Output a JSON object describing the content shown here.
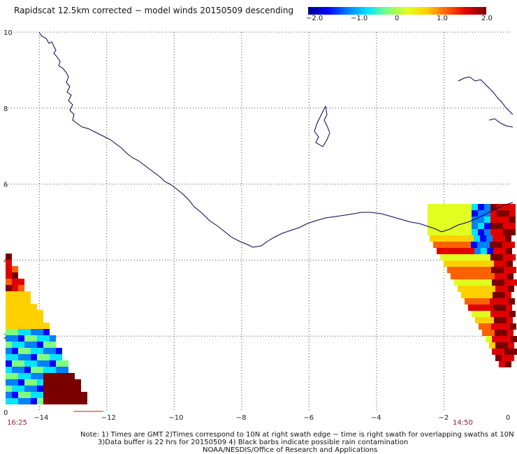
{
  "title": "Rapidscat 12.5km corrected − model winds 20150509 descending",
  "colorbar": {
    "labels": [
      "−2.0",
      "−1.0",
      "0",
      "1.0",
      "2.0"
    ],
    "min": -2.0,
    "max": 2.0,
    "stops": [
      "#00008b",
      "#0000ff",
      "#0080ff",
      "#00e5ff",
      "#7fff7f",
      "#e0ff20",
      "#ffd000",
      "#ff6000",
      "#e00000",
      "#7a0000"
    ]
  },
  "map": {
    "x_ticks": [
      "−14",
      "−12",
      "−10",
      "−8",
      "−6",
      "−4",
      "−2",
      "0"
    ],
    "y_ticks": [
      "0",
      "2",
      "4",
      "6",
      "8",
      "10"
    ],
    "lon_range": [
      -15,
      0
    ],
    "lat_range": [
      0,
      10
    ],
    "grid": "dotted",
    "coast_color": "#00005a"
  },
  "swaths": {
    "left_time": "16:25",
    "right_time": "14:50"
  },
  "notes": {
    "line1": "Note: 1) Times are GMT 2)Times correspond to 10N at right swath edge − time is right swath for overlapping swaths at 10N",
    "line2": "3)Data buffer is 22 hrs for 20150509 4) Black barbs indicate possible rain contamination",
    "line3": "NOAA/NESDIS/Office of Research and Applications"
  }
}
